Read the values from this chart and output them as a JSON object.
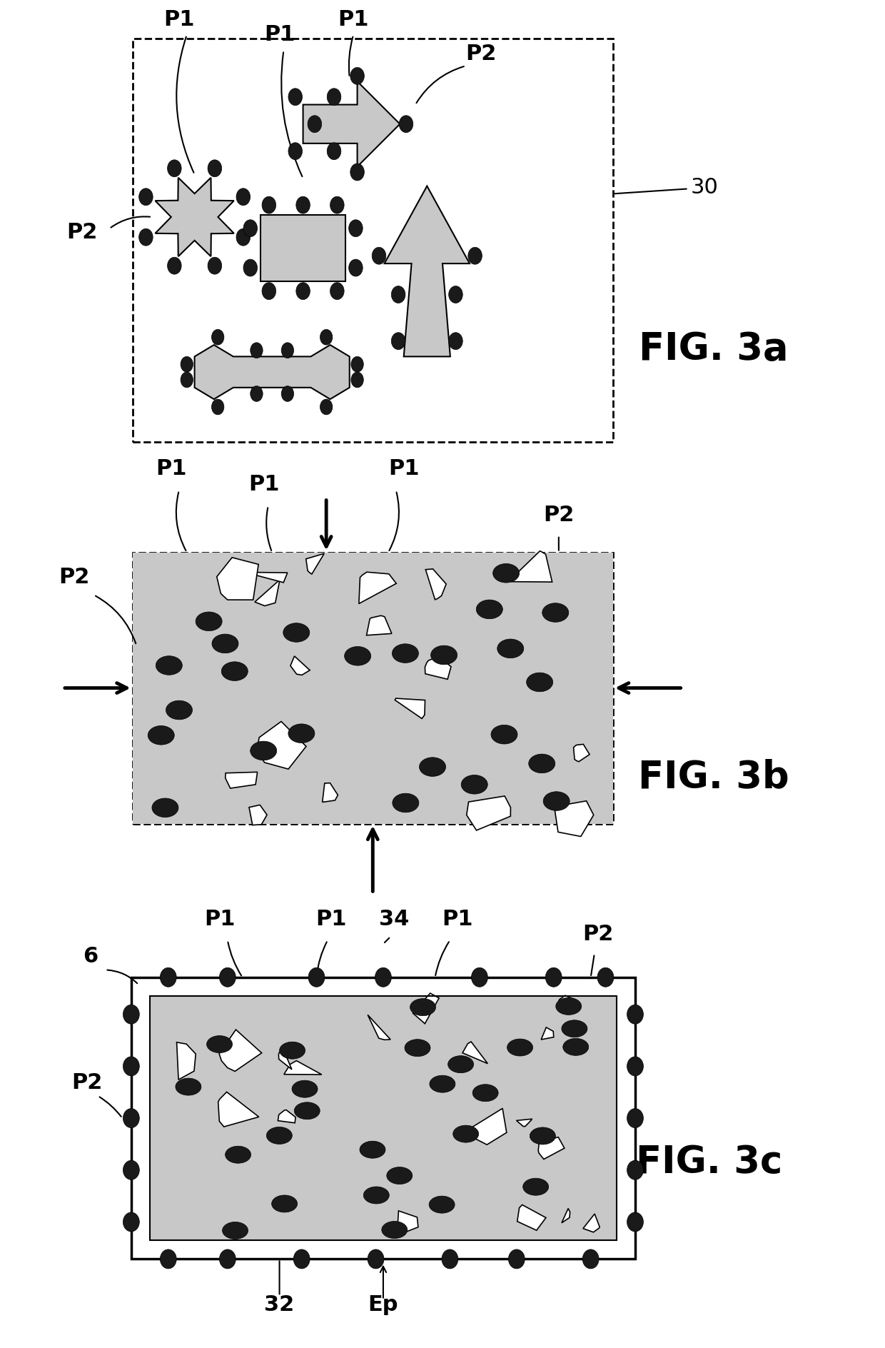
{
  "bg_color": "#ffffff",
  "fig_width": 12.4,
  "fig_height": 18.88,
  "gray_fill": "#c8c8c8",
  "dark_fill": "#1a1a1a",
  "label_fontsize": 22,
  "figlabel_fontsize": 38,
  "ref_fontsize": 22,
  "panels": [
    {
      "name": "FIG. 3a",
      "label": "FIG. 3a"
    },
    {
      "name": "FIG. 3b",
      "label": "FIG. 3b"
    },
    {
      "name": "FIG. 3c",
      "label": "FIG. 3c"
    }
  ]
}
